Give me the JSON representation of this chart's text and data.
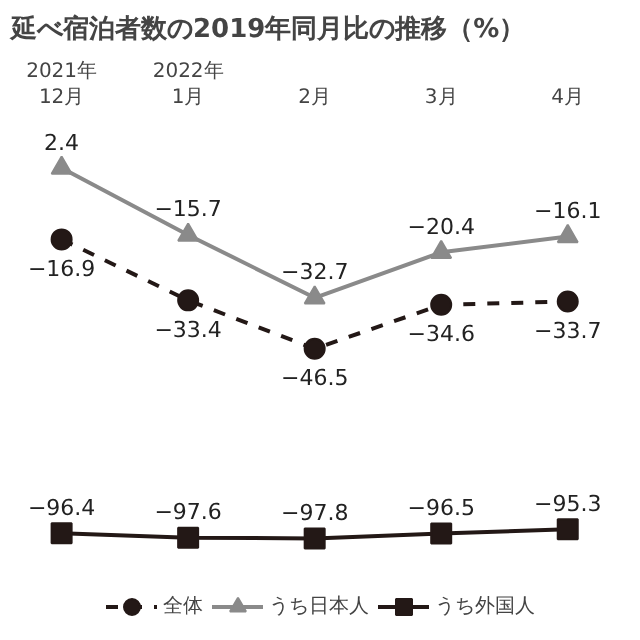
{
  "chart_data": {
    "type": "line",
    "title": "延べ宿泊者数の2019年同月比の推移（%）",
    "categories": [
      "2021年\n12月",
      "2022年\n1月",
      "2月",
      "3月",
      "4月"
    ],
    "series": [
      {
        "name": "全体",
        "color": "#231816",
        "values": [
          -16.9,
          -33.4,
          -46.5,
          -34.6,
          -33.7
        ],
        "marker": "circle",
        "line_style": "dashed"
      },
      {
        "name": "うち日本人",
        "color": "#8a8a8a",
        "values": [
          2.4,
          -15.7,
          -32.7,
          -20.4,
          -16.1
        ],
        "marker": "triangle",
        "line_style": "solid"
      },
      {
        "name": "うち外国人",
        "color": "#231816",
        "values": [
          -96.4,
          -97.6,
          -97.8,
          -96.5,
          -95.3
        ],
        "marker": "square",
        "line_style": "solid"
      }
    ],
    "data_labels": true,
    "legend": "bottom"
  }
}
